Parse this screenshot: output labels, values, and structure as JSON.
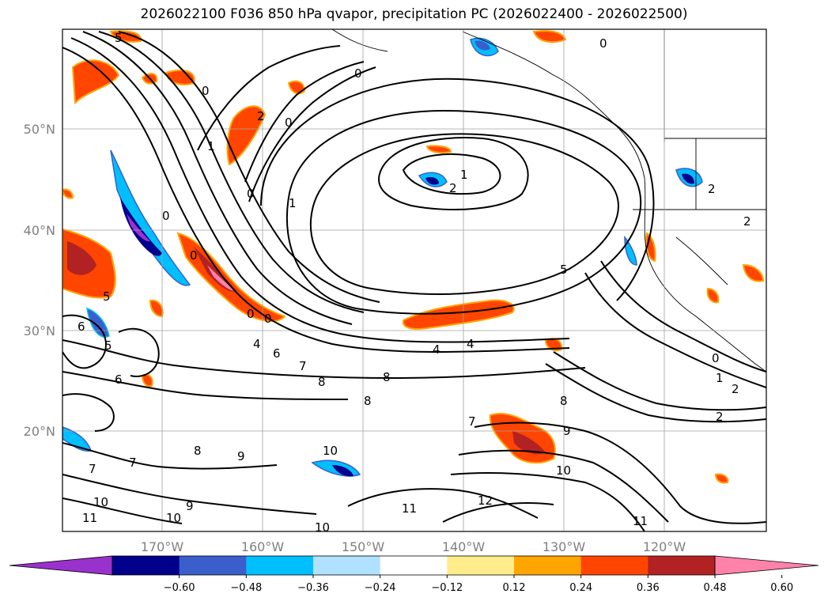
{
  "title": "2026022100 F036 850 hPa qvapor, precipitation PC (2026022400 - 2026022500)",
  "map": {
    "lat_ticks": [
      "50°N",
      "40°N",
      "30°N",
      "20°N"
    ],
    "lon_ticks": [
      "170°W",
      "160°W",
      "150°W",
      "140°W",
      "130°W",
      "120°W"
    ],
    "grid": true
  },
  "colorbar": {
    "ticks": [
      "−0.60",
      "−0.48",
      "−0.36",
      "−0.24",
      "−0.12",
      "0.12",
      "0.24",
      "0.36",
      "0.48",
      "0.60"
    ],
    "colors": [
      "#9932cc",
      "#00008b",
      "#3a5fcd",
      "#00bfff",
      "#b0e2ff",
      "#ffffff",
      "#ffec8b",
      "#ffa500",
      "#ff4500",
      "#b22222",
      "#ff82ab"
    ],
    "extend": "both"
  },
  "contour_labels": [
    "0",
    "1",
    "2",
    "4",
    "5",
    "6",
    "7",
    "8",
    "9",
    "10",
    "11",
    "12"
  ]
}
